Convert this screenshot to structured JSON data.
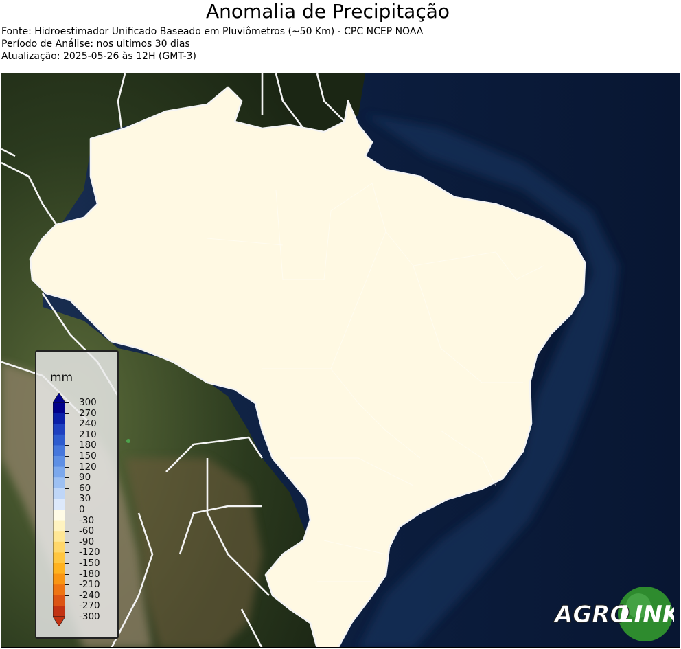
{
  "title": "Anomalia de Precipitação",
  "source_line": "Fonte: Hidroestimador Unificado Baseado em Pluviômetros (~50 Km) - CPC NCEP NOAA",
  "period_line": "Período de Análise: nos ultimos 30 dias",
  "update_line": "Atualização: 2025-05-26 às 12H (GMT-3)",
  "legend": {
    "unit": "mm",
    "ticks": [
      "300",
      "270",
      "240",
      "210",
      "180",
      "150",
      "120",
      "90",
      "60",
      "30",
      "0",
      "-30",
      "-60",
      "-90",
      "-120",
      "-150",
      "-180",
      "-210",
      "-240",
      "-270",
      "-300"
    ],
    "colors": {
      "positive": [
        "#00008b",
        "#0a1fa8",
        "#1e40c0",
        "#2e5ccf",
        "#4677dc",
        "#5e8fe4",
        "#7ca8ec",
        "#9dc0f2",
        "#bfd6f7",
        "#dde9fb"
      ],
      "negative": [
        "#fffbe6",
        "#fff3c0",
        "#ffe795",
        "#ffd76a",
        "#ffc640",
        "#ffb21f",
        "#f99513",
        "#ee7413",
        "#dc5414",
        "#c23313"
      ]
    }
  },
  "logo": {
    "left_text": "AGRO",
    "right_text": "LINK",
    "color": "#2e8b2e"
  }
}
